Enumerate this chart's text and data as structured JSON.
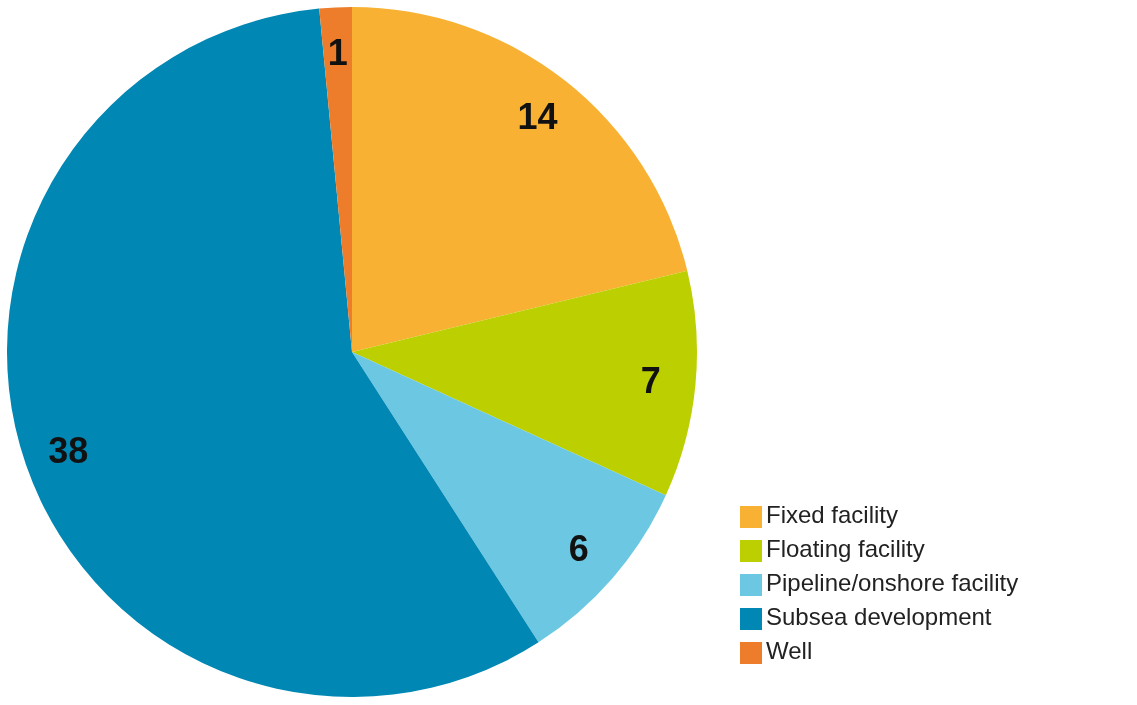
{
  "chart_data": {
    "type": "pie",
    "categories": [
      "Fixed facility",
      "Floating facility",
      "Pipeline/onshore facility",
      "Subsea development",
      "Well"
    ],
    "values": [
      14,
      7,
      6,
      38,
      1
    ],
    "colors": [
      "#f8b133",
      "#bcd001",
      "#6bc7e2",
      "#0087b4",
      "#ee7d2b"
    ],
    "data_labels": true,
    "legend": "bottom right"
  }
}
